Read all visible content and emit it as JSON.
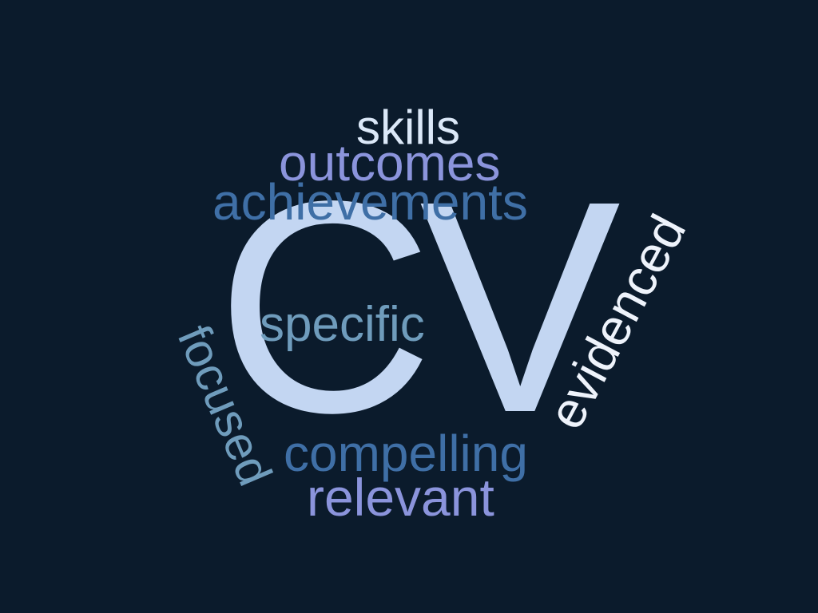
{
  "word_cloud": {
    "background_color": "#0b1b2c",
    "words": [
      {
        "id": "cv",
        "text": "CV",
        "color": "#c3d6f2"
      },
      {
        "id": "skills",
        "text": "skills",
        "color": "#dbe8f8"
      },
      {
        "id": "outcomes",
        "text": "outcomes",
        "color": "#8b94dc"
      },
      {
        "id": "achievements",
        "text": "achievements",
        "color": "#3f6fa6"
      },
      {
        "id": "specific",
        "text": "specific",
        "color": "#6f9cbc"
      },
      {
        "id": "compelling",
        "text": "compelling",
        "color": "#3f6fa6"
      },
      {
        "id": "relevant",
        "text": "relevant",
        "color": "#8b94dc"
      },
      {
        "id": "focused",
        "text": "focused",
        "color": "#6f9cbc"
      },
      {
        "id": "evidenced",
        "text": "evidenced",
        "color": "#eef3fb"
      }
    ]
  }
}
